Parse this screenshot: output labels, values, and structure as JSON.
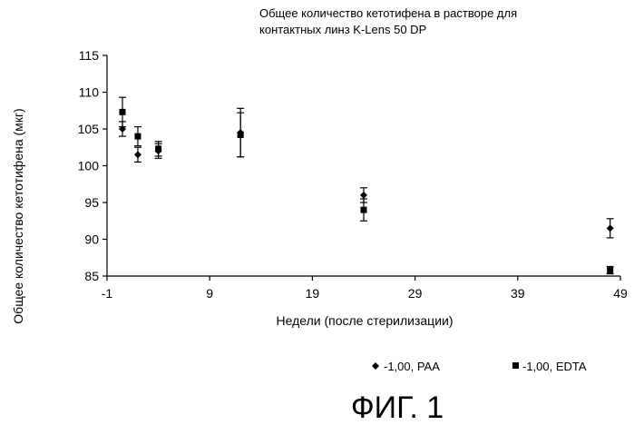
{
  "figure_label": "ФИГ. 1",
  "chart_data": {
    "type": "scatter",
    "title_lines": [
      "Общее количество кетотифена в растворе для",
      "контактных линз K-Lens 50 DP"
    ],
    "xlabel": "Недели (после стерилизации)",
    "ylabel": "Общее количество кетотифена (мкг)",
    "xlim": [
      -1,
      49
    ],
    "ylim": [
      85,
      115
    ],
    "x_ticks": [
      -1,
      9,
      19,
      29,
      39,
      49
    ],
    "y_ticks": [
      85,
      90,
      95,
      100,
      105,
      110,
      115
    ],
    "legend_position": "bottom-right",
    "series": [
      {
        "name": "-1,00, PAA",
        "marker": "diamond",
        "color": "#000000",
        "points": [
          {
            "x": 0.5,
            "y": 105.0,
            "err": 1.0
          },
          {
            "x": 2,
            "y": 101.5,
            "err": 1.0
          },
          {
            "x": 4,
            "y": 102.0,
            "err": 1.0
          },
          {
            "x": 12,
            "y": 104.5,
            "err": 3.3
          },
          {
            "x": 24,
            "y": 96.0,
            "err": 1.0
          },
          {
            "x": 48,
            "y": 91.5,
            "err": 1.3
          }
        ]
      },
      {
        "name": "-1,00, EDTA",
        "marker": "square",
        "color": "#000000",
        "points": [
          {
            "x": 0.5,
            "y": 107.3,
            "err": 2.0
          },
          {
            "x": 2,
            "y": 104.0,
            "err": 1.3
          },
          {
            "x": 4,
            "y": 102.3,
            "err": 1.0
          },
          {
            "x": 12,
            "y": 104.2,
            "err": 3.0
          },
          {
            "x": 24,
            "y": 94.0,
            "err": 1.5
          },
          {
            "x": 48,
            "y": 85.8,
            "err": 0.5
          }
        ]
      }
    ]
  }
}
